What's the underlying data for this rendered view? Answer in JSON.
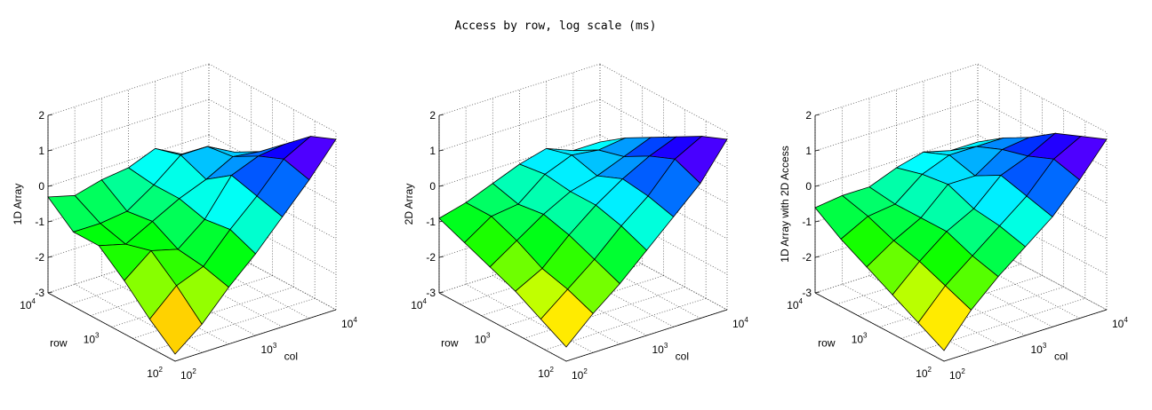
{
  "figure": {
    "title": "Access by row, log scale (ms)"
  },
  "chart_data": [
    {
      "type": "surface",
      "zlabel": "1D Array",
      "xlabel": "col",
      "ylabel": "row",
      "x_ticks": [
        {
          "base": "10",
          "exp": "2"
        },
        {
          "base": "10",
          "exp": "3"
        },
        {
          "base": "10",
          "exp": "4"
        }
      ],
      "y_ticks": [
        {
          "base": "10",
          "exp": "2"
        },
        {
          "base": "10",
          "exp": "3"
        },
        {
          "base": "10",
          "exp": "4"
        }
      ],
      "z_ticks": [
        "-3",
        "-2",
        "-1",
        "0",
        "1",
        "2"
      ],
      "zlim": [
        -3,
        2
      ],
      "grid": true,
      "colormap": "hsv",
      "z": [
        [
          -2.8,
          -2.2,
          -1.4,
          -0.7,
          0.1,
          0.9,
          1.8
        ],
        [
          -2.2,
          -1.5,
          -1.2,
          -0.4,
          0.3,
          1.1,
          1.5
        ],
        [
          -1.5,
          -0.9,
          -1.1,
          -0.5,
          0.5,
          0.8,
          0.9
        ],
        [
          -0.9,
          -1.1,
          -0.7,
          -0.3,
          0.0,
          0.4,
          0.3
        ],
        [
          -0.9,
          -0.9,
          -0.8,
          -0.3,
          0.3,
          0.3,
          -0.1
        ],
        [
          -0.3,
          -0.5,
          -0.3,
          -0.2,
          0.1,
          -0.3,
          -0.5
        ]
      ]
    },
    {
      "type": "surface",
      "zlabel": "2D Array",
      "xlabel": "col",
      "ylabel": "row",
      "x_ticks": [
        {
          "base": "10",
          "exp": "2"
        },
        {
          "base": "10",
          "exp": "3"
        },
        {
          "base": "10",
          "exp": "4"
        }
      ],
      "y_ticks": [
        {
          "base": "10",
          "exp": "2"
        },
        {
          "base": "10",
          "exp": "3"
        },
        {
          "base": "10",
          "exp": "4"
        }
      ],
      "z_ticks": [
        "-3",
        "-2",
        "-1",
        "0",
        "1",
        "2"
      ],
      "zlim": [
        -3,
        2
      ],
      "grid": true,
      "colormap": "hsv",
      "z": [
        [
          -2.6,
          -1.9,
          -1.3,
          -0.6,
          0.1,
          0.8,
          1.8
        ],
        [
          -2.2,
          -1.6,
          -1.0,
          -0.3,
          0.3,
          1.1,
          1.5
        ],
        [
          -1.8,
          -1.4,
          -0.7,
          -0.1,
          0.4,
          0.8,
          1.1
        ],
        [
          -1.5,
          -1.0,
          -0.5,
          -0.1,
          0.1,
          0.4,
          0.7
        ],
        [
          -1.2,
          -0.7,
          -0.6,
          0.0,
          0.3,
          0.2,
          0.3
        ],
        [
          -0.9,
          -0.7,
          -0.4,
          -0.1,
          0.1,
          -0.2,
          -0.2
        ]
      ]
    },
    {
      "type": "surface",
      "zlabel": "1D Array with 2D Access",
      "xlabel": "col",
      "ylabel": "row",
      "x_ticks": [
        {
          "base": "10",
          "exp": "2"
        },
        {
          "base": "10",
          "exp": "3"
        },
        {
          "base": "10",
          "exp": "4"
        }
      ],
      "y_ticks": [
        {
          "base": "10",
          "exp": "2"
        },
        {
          "base": "10",
          "exp": "3"
        },
        {
          "base": "10",
          "exp": "4"
        }
      ],
      "z_ticks": [
        "-3",
        "-2",
        "-1",
        "0",
        "1",
        "2"
      ],
      "zlim": [
        -3,
        2
      ],
      "grid": true,
      "colormap": "hsv",
      "z": [
        [
          -2.7,
          -1.8,
          -1.1,
          -0.5,
          0.1,
          0.9,
          1.8
        ],
        [
          -2.3,
          -1.5,
          -0.9,
          -0.3,
          0.3,
          1.1,
          1.5
        ],
        [
          -1.9,
          -1.2,
          -0.6,
          -0.2,
          0.5,
          0.8,
          1.2
        ],
        [
          -1.5,
          -1.0,
          -0.6,
          0.1,
          0.1,
          0.6,
          0.7
        ],
        [
          -1.1,
          -0.7,
          -0.6,
          0.0,
          0.3,
          0.3,
          0.3
        ],
        [
          -0.6,
          -0.5,
          -0.5,
          -0.2,
          0.0,
          -0.2,
          -0.2
        ]
      ]
    }
  ]
}
